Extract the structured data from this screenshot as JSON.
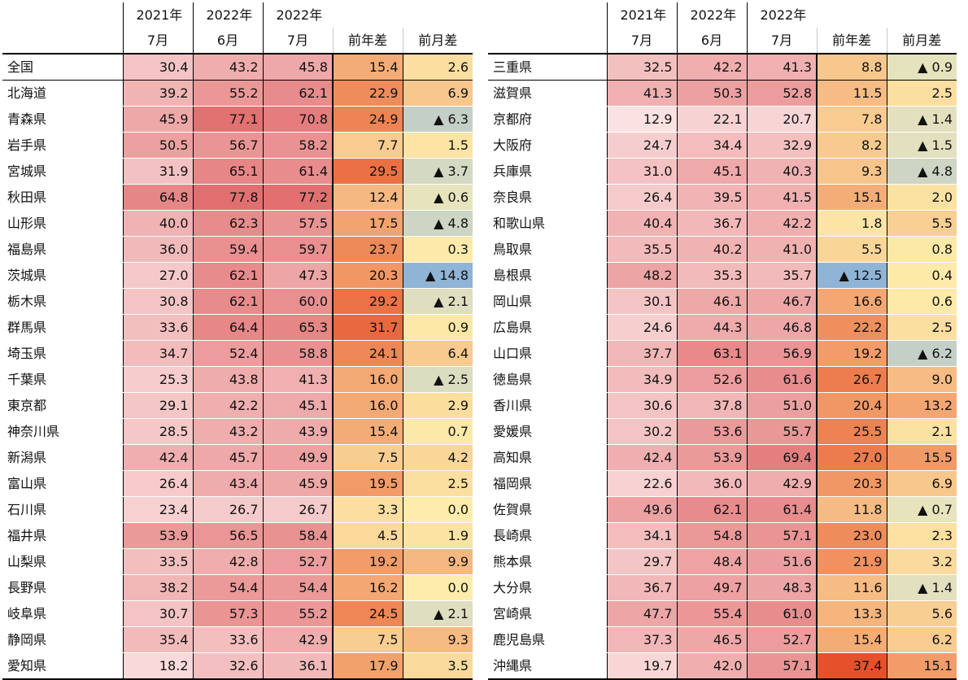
{
  "headers": {
    "row1": [
      "2021年",
      "2022年",
      "2022年"
    ],
    "row2": [
      "7月",
      "6月",
      "7月",
      "前年差",
      "前月差"
    ]
  },
  "chart_data": {
    "type": "table",
    "columns": [
      "2021年7月",
      "2022年6月",
      "2022年7月",
      "前年差",
      "前月差"
    ],
    "negative_marker": "▲",
    "rows_left": [
      {
        "name": "全国",
        "values": [
          "30.4",
          "43.2",
          "45.8",
          "15.4",
          "2.6"
        ]
      },
      {
        "name": "北海道",
        "values": [
          "39.2",
          "55.2",
          "62.1",
          "22.9",
          "6.9"
        ]
      },
      {
        "name": "青森県",
        "values": [
          "45.9",
          "77.1",
          "70.8",
          "24.9",
          "▲ 6.3"
        ]
      },
      {
        "name": "岩手県",
        "values": [
          "50.5",
          "56.7",
          "58.2",
          "7.7",
          "1.5"
        ]
      },
      {
        "name": "宮城県",
        "values": [
          "31.9",
          "65.1",
          "61.4",
          "29.5",
          "▲ 3.7"
        ]
      },
      {
        "name": "秋田県",
        "values": [
          "64.8",
          "77.8",
          "77.2",
          "12.4",
          "▲ 0.6"
        ]
      },
      {
        "name": "山形県",
        "values": [
          "40.0",
          "62.3",
          "57.5",
          "17.5",
          "▲ 4.8"
        ]
      },
      {
        "name": "福島県",
        "values": [
          "36.0",
          "59.4",
          "59.7",
          "23.7",
          "0.3"
        ]
      },
      {
        "name": "茨城県",
        "values": [
          "27.0",
          "62.1",
          "47.3",
          "20.3",
          "▲ 14.8"
        ]
      },
      {
        "name": "栃木県",
        "values": [
          "30.8",
          "62.1",
          "60.0",
          "29.2",
          "▲ 2.1"
        ]
      },
      {
        "name": "群馬県",
        "values": [
          "33.6",
          "64.4",
          "65.3",
          "31.7",
          "0.9"
        ]
      },
      {
        "name": "埼玉県",
        "values": [
          "34.7",
          "52.4",
          "58.8",
          "24.1",
          "6.4"
        ]
      },
      {
        "name": "千葉県",
        "values": [
          "25.3",
          "43.8",
          "41.3",
          "16.0",
          "▲ 2.5"
        ]
      },
      {
        "name": "東京都",
        "values": [
          "29.1",
          "42.2",
          "45.1",
          "16.0",
          "2.9"
        ]
      },
      {
        "name": "神奈川県",
        "values": [
          "28.5",
          "43.2",
          "43.9",
          "15.4",
          "0.7"
        ]
      },
      {
        "name": "新潟県",
        "values": [
          "42.4",
          "45.7",
          "49.9",
          "7.5",
          "4.2"
        ]
      },
      {
        "name": "富山県",
        "values": [
          "26.4",
          "43.4",
          "45.9",
          "19.5",
          "2.5"
        ]
      },
      {
        "name": "石川県",
        "values": [
          "23.4",
          "26.7",
          "26.7",
          "3.3",
          "0.0"
        ]
      },
      {
        "name": "福井県",
        "values": [
          "53.9",
          "56.5",
          "58.4",
          "4.5",
          "1.9"
        ]
      },
      {
        "name": "山梨県",
        "values": [
          "33.5",
          "42.8",
          "52.7",
          "19.2",
          "9.9"
        ]
      },
      {
        "name": "長野県",
        "values": [
          "38.2",
          "54.4",
          "54.4",
          "16.2",
          "0.0"
        ]
      },
      {
        "name": "岐阜県",
        "values": [
          "30.7",
          "57.3",
          "55.2",
          "24.5",
          "▲ 2.1"
        ]
      },
      {
        "name": "静岡県",
        "values": [
          "35.4",
          "33.6",
          "42.9",
          "7.5",
          "9.3"
        ]
      },
      {
        "name": "愛知県",
        "values": [
          "18.2",
          "32.6",
          "36.1",
          "17.9",
          "3.5"
        ]
      }
    ],
    "rows_right": [
      {
        "name": "三重県",
        "values": [
          "32.5",
          "42.2",
          "41.3",
          "8.8",
          "▲ 0.9"
        ]
      },
      {
        "name": "滋賀県",
        "values": [
          "41.3",
          "50.3",
          "52.8",
          "11.5",
          "2.5"
        ]
      },
      {
        "name": "京都府",
        "values": [
          "12.9",
          "22.1",
          "20.7",
          "7.8",
          "▲ 1.4"
        ]
      },
      {
        "name": "大阪府",
        "values": [
          "24.7",
          "34.4",
          "32.9",
          "8.2",
          "▲ 1.5"
        ]
      },
      {
        "name": "兵庫県",
        "values": [
          "31.0",
          "45.1",
          "40.3",
          "9.3",
          "▲ 4.8"
        ]
      },
      {
        "name": "奈良県",
        "values": [
          "26.4",
          "39.5",
          "41.5",
          "15.1",
          "2.0"
        ]
      },
      {
        "name": "和歌山県",
        "values": [
          "40.4",
          "36.7",
          "42.2",
          "1.8",
          "5.5"
        ]
      },
      {
        "name": "鳥取県",
        "values": [
          "35.5",
          "40.2",
          "41.0",
          "5.5",
          "0.8"
        ]
      },
      {
        "name": "島根県",
        "values": [
          "48.2",
          "35.3",
          "35.7",
          "▲ 12.5",
          "0.4"
        ]
      },
      {
        "name": "岡山県",
        "values": [
          "30.1",
          "46.1",
          "46.7",
          "16.6",
          "0.6"
        ]
      },
      {
        "name": "広島県",
        "values": [
          "24.6",
          "44.3",
          "46.8",
          "22.2",
          "2.5"
        ]
      },
      {
        "name": "山口県",
        "values": [
          "37.7",
          "63.1",
          "56.9",
          "19.2",
          "▲ 6.2"
        ]
      },
      {
        "name": "徳島県",
        "values": [
          "34.9",
          "52.6",
          "61.6",
          "26.7",
          "9.0"
        ]
      },
      {
        "name": "香川県",
        "values": [
          "30.6",
          "37.8",
          "51.0",
          "20.4",
          "13.2"
        ]
      },
      {
        "name": "愛媛県",
        "values": [
          "30.2",
          "53.6",
          "55.7",
          "25.5",
          "2.1"
        ]
      },
      {
        "name": "高知県",
        "values": [
          "42.4",
          "53.9",
          "69.4",
          "27.0",
          "15.5"
        ]
      },
      {
        "name": "福岡県",
        "values": [
          "22.6",
          "36.0",
          "42.9",
          "20.3",
          "6.9"
        ]
      },
      {
        "name": "佐賀県",
        "values": [
          "49.6",
          "62.1",
          "61.4",
          "11.8",
          "▲ 0.7"
        ]
      },
      {
        "name": "長崎県",
        "values": [
          "34.1",
          "54.8",
          "57.1",
          "23.0",
          "2.3"
        ]
      },
      {
        "name": "熊本県",
        "values": [
          "29.7",
          "48.4",
          "51.6",
          "21.9",
          "3.2"
        ]
      },
      {
        "name": "大分県",
        "values": [
          "36.7",
          "49.7",
          "48.3",
          "11.6",
          "▲ 1.4"
        ]
      },
      {
        "name": "宮崎県",
        "values": [
          "47.7",
          "55.4",
          "61.0",
          "13.3",
          "5.6"
        ]
      },
      {
        "name": "鹿児島県",
        "values": [
          "37.3",
          "46.5",
          "52.7",
          "15.4",
          "6.2"
        ]
      },
      {
        "name": "沖縄県",
        "values": [
          "19.7",
          "42.0",
          "57.1",
          "37.4",
          "15.1"
        ]
      }
    ]
  }
}
